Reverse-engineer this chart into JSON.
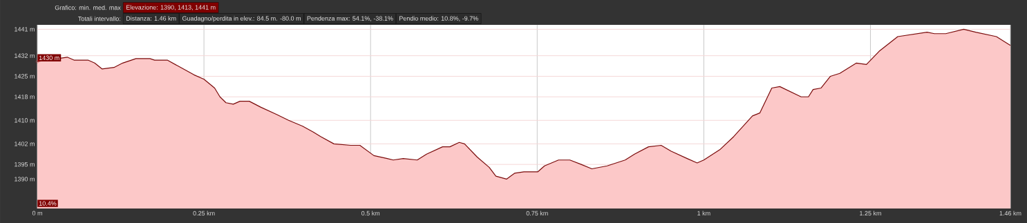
{
  "chart_data": {
    "type": "area",
    "annotations": [
      "Grafico: min. med. max",
      "Elevazione: 1390, 1413, 1441 m",
      "Totali intervallo:",
      "Distanza: 1.46 km",
      "Guadagno/perdita in elev.: 84.5 m. -80.0 m",
      "Pendenza max: 54.1%, -38.1%",
      "Pendio medio: 10.8%, -9.7%",
      {
        "text": "1430 m",
        "x": 0,
        "y": 1430
      },
      "10.4%"
    ],
    "x": [
      0,
      0.045,
      0.055,
      0.076,
      0.086,
      0.097,
      0.115,
      0.128,
      0.148,
      0.169,
      0.176,
      0.195,
      0.211,
      0.235,
      0.25,
      0.266,
      0.274,
      0.283,
      0.294,
      0.304,
      0.318,
      0.335,
      0.359,
      0.377,
      0.398,
      0.414,
      0.425,
      0.445,
      0.47,
      0.484,
      0.505,
      0.525,
      0.534,
      0.549,
      0.57,
      0.584,
      0.608,
      0.619,
      0.633,
      0.641,
      0.66,
      0.678,
      0.688,
      0.704,
      0.716,
      0.73,
      0.751,
      0.761,
      0.782,
      0.799,
      0.816,
      0.832,
      0.855,
      0.882,
      0.896,
      0.917,
      0.936,
      0.951,
      0.975,
      0.99,
      1.0,
      1.024,
      1.045,
      1.073,
      1.084,
      1.102,
      1.114,
      1.146,
      1.157,
      1.164,
      1.176,
      1.19,
      1.204,
      1.229,
      1.244,
      1.263,
      1.291,
      1.335,
      1.346,
      1.363,
      1.39,
      1.408,
      1.439,
      1.453,
      1.46
    ],
    "series": [
      {
        "color": "#7a0a0a",
        "values": [
          1430,
          1431.5,
          1430.5,
          1430.5,
          1429.5,
          1427.5,
          1428,
          1429.5,
          1431,
          1431,
          1430.5,
          1430.5,
          1428.5,
          1425.5,
          1424,
          1421,
          1418,
          1416,
          1415.5,
          1416.5,
          1416.5,
          1414.5,
          1412,
          1410,
          1408,
          1406,
          1404.5,
          1402,
          1401.5,
          1401.5,
          1398,
          1397,
          1396.5,
          1397,
          1396.5,
          1398.5,
          1401,
          1401,
          1402.5,
          1402,
          1397.5,
          1394,
          1391,
          1390,
          1392,
          1392.5,
          1392.5,
          1394.5,
          1396.5,
          1396.5,
          1395,
          1393.5,
          1394.5,
          1396.5,
          1398.5,
          1401,
          1401.5,
          1399.5,
          1397,
          1395.5,
          1396.5,
          1400,
          1404.5,
          1411.5,
          1412.5,
          1421,
          1421.5,
          1418,
          1418,
          1420.5,
          1421,
          1425,
          1426,
          1429.5,
          1429,
          1433.5,
          1438.5,
          1440,
          1439.5,
          1439.5,
          1441,
          1440,
          1438.5,
          1436.5,
          1435.5
        ]
      }
    ],
    "xlim": [
      0,
      1.46
    ],
    "ylim": [
      1380,
      1442.5
    ],
    "xticks": [
      {
        "value": 0,
        "label": "0 m"
      },
      {
        "value": 0.25,
        "label": "0.25 km"
      },
      {
        "value": 0.5,
        "label": "0.5 km"
      },
      {
        "value": 0.75,
        "label": "0.75 km"
      },
      {
        "value": 1,
        "label": "1 km"
      },
      {
        "value": 1.25,
        "label": "1.25 km"
      },
      {
        "value": 1.46,
        "label": "1.46 km"
      }
    ],
    "yticks": [
      {
        "value": 1390,
        "label": "1390 m"
      },
      {
        "value": 1395,
        "label": "1395 m"
      },
      {
        "value": 1402,
        "label": "1402 m"
      },
      {
        "value": 1410,
        "label": "1410 m"
      },
      {
        "value": 1418,
        "label": "1418 m"
      },
      {
        "value": 1425,
        "label": "1425 m"
      },
      {
        "value": 1432,
        "label": "1432 m"
      },
      {
        "value": 1441,
        "label": "1441 m"
      }
    ],
    "grid": true
  }
}
